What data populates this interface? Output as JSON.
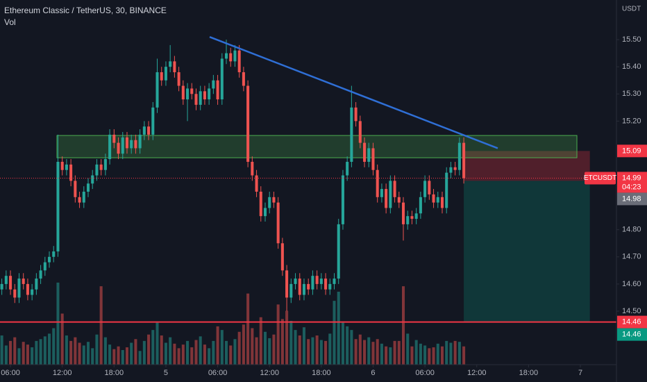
{
  "chart_data": {
    "type": "candlestick",
    "title": "Ethereum Classic / TetherUS, 30, BINANCE",
    "volume_label": "Vol",
    "currency": "USDT",
    "up_color": "#26a69a",
    "down_color": "#ef5350",
    "x": [
      5,
      5.5,
      6,
      6.5,
      7,
      7.5,
      8,
      8.5,
      9,
      9.5,
      10,
      10.5,
      11,
      11.5,
      12,
      12.5,
      13,
      13.5,
      14,
      14.5,
      15,
      15.5,
      16,
      16.5,
      17,
      17.5,
      18,
      18.5,
      19,
      19.5,
      20,
      20.5,
      21,
      21.5,
      22,
      22.5,
      23,
      23.5,
      24,
      24.5,
      25,
      25.5,
      26,
      26.5,
      27,
      27.5,
      28,
      28.5,
      29,
      29.5,
      30,
      30.5,
      31,
      31.5,
      32,
      32.5,
      33,
      33.5,
      34,
      34.5,
      35,
      35.5,
      36,
      36.5,
      37,
      37.5,
      38,
      38.5,
      39,
      39.5,
      40,
      40.5,
      41,
      41.5,
      42,
      42.5,
      43,
      43.5,
      44,
      44.5,
      45,
      45.5,
      46,
      46.5,
      47,
      47.5,
      48,
      48.5,
      49,
      49.5,
      50,
      50.5,
      51,
      51.5,
      52,
      52.5,
      53,
      53.5,
      54,
      54.5,
      55,
      55.5,
      56,
      56.5,
      57,
      57.5,
      58,
      58.5
    ],
    "open": [
      14.58,
      14.6,
      14.63,
      14.58,
      14.55,
      14.62,
      14.6,
      14.56,
      14.58,
      14.62,
      14.65,
      14.68,
      14.7,
      14.72,
      15.05,
      15.02,
      15.04,
      14.98,
      14.92,
      14.9,
      14.94,
      14.97,
      15.0,
      15.04,
      15.02,
      15.06,
      15.15,
      15.12,
      15.08,
      15.14,
      15.1,
      15.13,
      15.1,
      15.15,
      15.18,
      15.15,
      15.25,
      15.38,
      15.35,
      15.4,
      15.42,
      15.38,
      15.33,
      15.28,
      15.32,
      15.3,
      15.26,
      15.31,
      15.28,
      15.32,
      15.35,
      15.28,
      15.43,
      15.45,
      15.42,
      15.46,
      15.38,
      15.33,
      15.05,
      15.0,
      14.94,
      14.85,
      14.88,
      14.92,
      14.9,
      14.75,
      14.65,
      14.55,
      14.6,
      14.62,
      14.56,
      14.6,
      14.58,
      14.63,
      14.6,
      14.62,
      14.58,
      14.6,
      14.62,
      14.82,
      15.0,
      15.05,
      15.25,
      15.2,
      15.12,
      15.05,
      15.1,
      15.02,
      14.92,
      14.95,
      14.88,
      14.98,
      14.92,
      14.9,
      14.82,
      14.85,
      14.84,
      14.86,
      14.92,
      14.98,
      14.93,
      14.9,
      14.92,
      14.88,
      15.01,
      15.03,
      15.02,
      15.12
    ],
    "high": [
      14.62,
      14.65,
      14.65,
      14.6,
      14.64,
      14.64,
      14.62,
      14.6,
      14.64,
      14.67,
      14.7,
      14.72,
      14.74,
      15.15,
      15.07,
      15.06,
      15.06,
      15.0,
      14.94,
      14.96,
      14.99,
      15.02,
      15.06,
      15.06,
      15.08,
      15.17,
      15.17,
      15.14,
      15.16,
      15.16,
      15.15,
      15.15,
      15.17,
      15.2,
      15.2,
      15.27,
      15.43,
      15.4,
      15.42,
      15.48,
      15.44,
      15.4,
      15.35,
      15.34,
      15.34,
      15.32,
      15.33,
      15.33,
      15.34,
      15.37,
      15.37,
      15.45,
      15.5,
      15.47,
      15.48,
      15.48,
      15.4,
      15.35,
      15.07,
      15.02,
      14.96,
      14.9,
      14.94,
      14.94,
      14.92,
      14.77,
      14.67,
      14.62,
      14.64,
      14.64,
      14.62,
      14.62,
      14.65,
      14.65,
      14.64,
      14.64,
      14.62,
      14.64,
      14.84,
      15.02,
      15.07,
      15.33,
      15.27,
      15.22,
      15.14,
      15.12,
      15.12,
      15.04,
      14.97,
      14.97,
      15.0,
      15.0,
      14.94,
      14.92,
      14.87,
      14.87,
      14.88,
      14.94,
      15.0,
      15.0,
      14.95,
      14.94,
      14.94,
      15.03,
      15.05,
      15.05,
      15.14,
      15.14
    ],
    "low": [
      14.56,
      14.58,
      14.56,
      14.53,
      14.53,
      14.58,
      14.54,
      14.54,
      14.56,
      14.6,
      14.63,
      14.66,
      14.68,
      14.7,
      15.0,
      15.0,
      14.96,
      14.9,
      14.88,
      14.88,
      14.92,
      14.95,
      14.98,
      15.0,
      15.0,
      15.04,
      15.1,
      15.06,
      15.06,
      15.08,
      15.08,
      15.08,
      15.08,
      15.13,
      15.13,
      15.13,
      15.23,
      15.33,
      15.33,
      15.38,
      15.36,
      15.31,
      15.26,
      15.2,
      15.28,
      15.24,
      15.24,
      15.26,
      15.26,
      15.3,
      15.26,
      15.26,
      15.41,
      15.4,
      15.4,
      15.36,
      15.31,
      15.03,
      14.98,
      14.92,
      14.83,
      14.83,
      14.86,
      14.88,
      14.73,
      14.63,
      14.5,
      14.53,
      14.58,
      14.54,
      14.54,
      14.56,
      14.56,
      14.58,
      14.58,
      14.56,
      14.56,
      14.58,
      14.6,
      14.8,
      14.98,
      15.03,
      15.18,
      15.1,
      15.03,
      15.03,
      15.0,
      14.9,
      14.9,
      14.86,
      14.86,
      14.9,
      14.88,
      14.76,
      14.8,
      14.82,
      14.82,
      14.84,
      14.9,
      14.91,
      14.88,
      14.88,
      14.86,
      14.86,
      14.99,
      15.0,
      15.0,
      14.97
    ],
    "close": [
      14.6,
      14.63,
      14.58,
      14.55,
      14.62,
      14.6,
      14.56,
      14.58,
      14.62,
      14.65,
      14.68,
      14.7,
      14.72,
      15.05,
      15.02,
      15.04,
      14.98,
      14.92,
      14.9,
      14.94,
      14.97,
      15.0,
      15.04,
      15.02,
      15.06,
      15.15,
      15.12,
      15.08,
      15.14,
      15.1,
      15.13,
      15.1,
      15.15,
      15.18,
      15.15,
      15.25,
      15.38,
      15.35,
      15.4,
      15.42,
      15.38,
      15.33,
      15.28,
      15.32,
      15.3,
      15.26,
      15.31,
      15.28,
      15.32,
      15.35,
      15.28,
      15.43,
      15.45,
      15.42,
      15.46,
      15.38,
      15.33,
      15.05,
      15.0,
      14.94,
      14.85,
      14.88,
      14.92,
      14.9,
      14.75,
      14.65,
      14.55,
      14.6,
      14.62,
      14.56,
      14.6,
      14.58,
      14.63,
      14.6,
      14.62,
      14.58,
      14.6,
      14.62,
      14.82,
      15.0,
      15.05,
      15.25,
      15.2,
      15.12,
      15.05,
      15.1,
      15.02,
      14.92,
      14.95,
      14.88,
      14.98,
      14.92,
      14.9,
      14.82,
      14.85,
      14.84,
      14.86,
      14.92,
      14.98,
      14.93,
      14.9,
      14.92,
      14.88,
      15.01,
      15.03,
      15.02,
      15.12,
      14.99
    ],
    "volume": [
      3200,
      2100,
      2600,
      3000,
      1800,
      2500,
      2200,
      1900,
      2600,
      2800,
      3100,
      3400,
      4000,
      9000,
      5600,
      3200,
      2600,
      3000,
      2400,
      2100,
      2500,
      1800,
      3300,
      8600,
      3000,
      2200,
      1700,
      2000,
      1600,
      1900,
      2400,
      2800,
      1500,
      2600,
      3300,
      3800,
      4600,
      3200,
      2400,
      3000,
      2300,
      1800,
      2200,
      2600,
      1900,
      2700,
      3100,
      2200,
      1800,
      2600,
      4200,
      3800,
      2600,
      2100,
      2800,
      3600,
      4400,
      7800,
      4000,
      3000,
      5200,
      3600,
      2900,
      3300,
      6600,
      5000,
      5900,
      4800,
      3800,
      3200,
      4100,
      2800,
      3000,
      3200,
      2700,
      2600,
      3400,
      7000,
      8000,
      4600,
      4200,
      3800,
      2800,
      3300,
      2700,
      3000,
      2500,
      2800,
      2300,
      2000,
      1900,
      2600,
      2600,
      8600,
      3400,
      2000,
      2700,
      2300,
      2100,
      1800,
      1900,
      2300,
      2000,
      2600,
      2400,
      2600,
      2500,
      2000
    ],
    "xlim": [
      4.79,
      76.18
    ],
    "xticks": [
      {
        "value": 6,
        "label": "06:00"
      },
      {
        "value": 12,
        "label": "12:00"
      },
      {
        "value": 18,
        "label": "18:00"
      },
      {
        "value": 24,
        "label": "5"
      },
      {
        "value": 30,
        "label": "06:00"
      },
      {
        "value": 36,
        "label": "12:00"
      },
      {
        "value": 42,
        "label": "18:00"
      },
      {
        "value": 48,
        "label": "6"
      },
      {
        "value": 54,
        "label": "06:00"
      },
      {
        "value": 60,
        "label": "12:00"
      },
      {
        "value": 66,
        "label": "18:00"
      },
      {
        "value": 72,
        "label": "7"
      }
    ],
    "ylim": [
      14.303,
      15.646
    ],
    "yticks": [
      {
        "value": 15.5,
        "label": "15.50"
      },
      {
        "value": 15.4,
        "label": "15.40"
      },
      {
        "value": 15.3,
        "label": "15.30"
      },
      {
        "value": 15.2,
        "label": "15.20"
      },
      {
        "value": 14.8,
        "label": "14.80"
      },
      {
        "value": 14.7,
        "label": "14.70"
      },
      {
        "value": 14.6,
        "label": "14.60"
      },
      {
        "value": 14.5,
        "label": "14.50"
      }
    ],
    "y2lim": [
      0,
      40000
    ],
    "trendline": {
      "x": [
        29.07,
        62.43
      ],
      "y": [
        15.51,
        15.1
      ],
      "color": "#2f6fd6"
    },
    "zone": {
      "x": [
        11.38,
        71.6
      ],
      "y": [
        15.065,
        15.147
      ],
      "color": "#4caf50"
    },
    "position": {
      "x": [
        58.5,
        73.1
      ],
      "stop": 15.09,
      "entry": 14.98,
      "target": 14.46
    },
    "hline": {
      "value": 14.46,
      "color": "#f23645"
    },
    "price_labels": [
      {
        "value": 15.09,
        "color": "#f23645"
      },
      {
        "value": 14.99,
        "name": "ETCUSDT",
        "countdown": "04:23",
        "color": "#f23645"
      },
      {
        "value": 14.98,
        "color": "#6a6d78"
      },
      {
        "value": 14.46,
        "color": "#f23645"
      },
      {
        "value": 14.46,
        "color": "#089981"
      }
    ]
  }
}
